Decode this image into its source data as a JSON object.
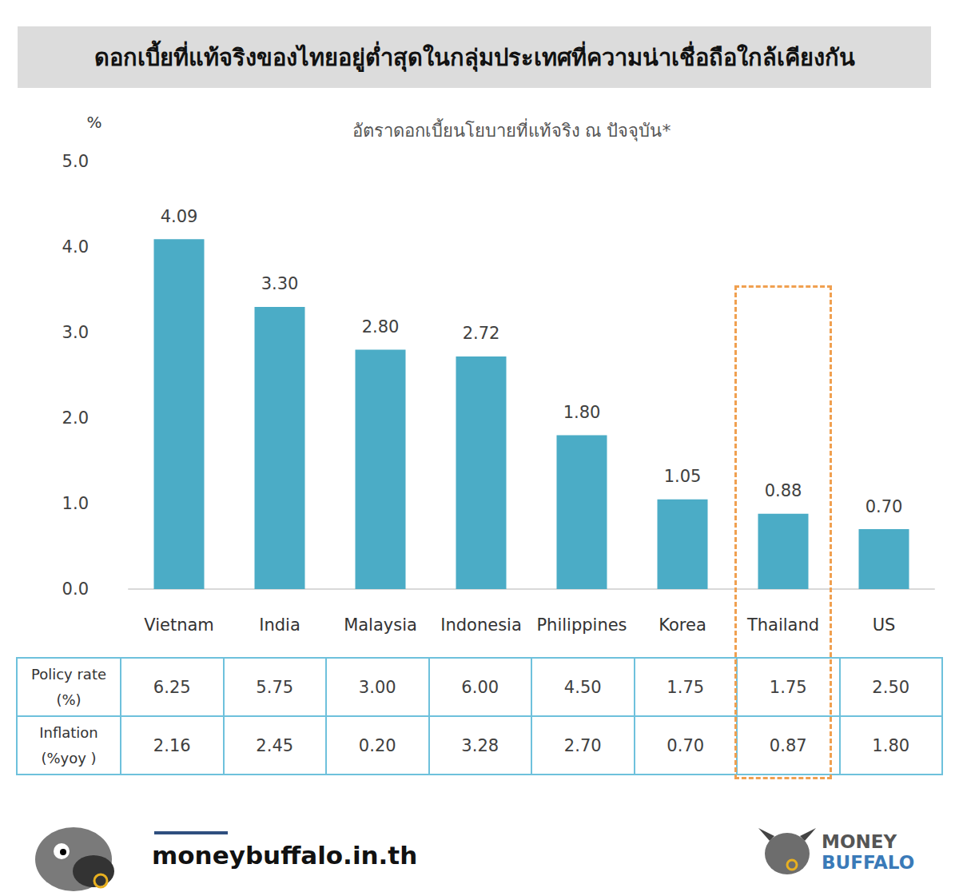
{
  "header": {
    "title": "ดอกเบี้ยที่แท้จริงของไทยอยู่ต่ำสุดในกลุ่มประเทศที่ความน่าเชื่อถือใกล้เคียงกัน"
  },
  "chart_data": {
    "type": "bar",
    "subtitle": "อัตราดอกเบี้ยนโยบายที่แท้จริง ณ ปัจจุบัน*",
    "y_label": "%",
    "categories": [
      "Vietnam",
      "India",
      "Malaysia",
      "Indonesia",
      "Philippines",
      "Korea",
      "Thailand",
      "US"
    ],
    "values": [
      4.09,
      3.3,
      2.8,
      2.72,
      1.8,
      1.05,
      0.88,
      0.7
    ],
    "value_labels": [
      "4.09",
      "3.30",
      "2.80",
      "2.72",
      "1.80",
      "1.05",
      "0.88",
      "0.70"
    ],
    "color": "#4bacc6",
    "ylim": [
      0,
      5
    ],
    "yticks": [
      {
        "value": 0,
        "label": "0.0"
      },
      {
        "value": 1,
        "label": "1.0"
      },
      {
        "value": 2,
        "label": "2.0"
      },
      {
        "value": 3,
        "label": "3.0"
      },
      {
        "value": 4,
        "label": "4.0"
      },
      {
        "value": 5,
        "label": "5.0"
      }
    ],
    "grid": false,
    "data_labels": true
  },
  "highlight": {
    "category": "Thailand"
  },
  "table": {
    "rows": [
      {
        "label": "Policy rate (%)",
        "values": [
          "6.25",
          "5.75",
          "3.00",
          "6.00",
          "4.50",
          "1.75",
          "1.75",
          "2.50"
        ]
      },
      {
        "label": "Inflation (%yoy )",
        "values": [
          "2.16",
          "2.45",
          "0.20",
          "3.28",
          "2.70",
          "0.70",
          "0.87",
          "1.80"
        ]
      }
    ]
  },
  "footer": {
    "site": "moneybuffalo.in.th",
    "logo": [
      "MONEY",
      "BUFFALO"
    ]
  }
}
